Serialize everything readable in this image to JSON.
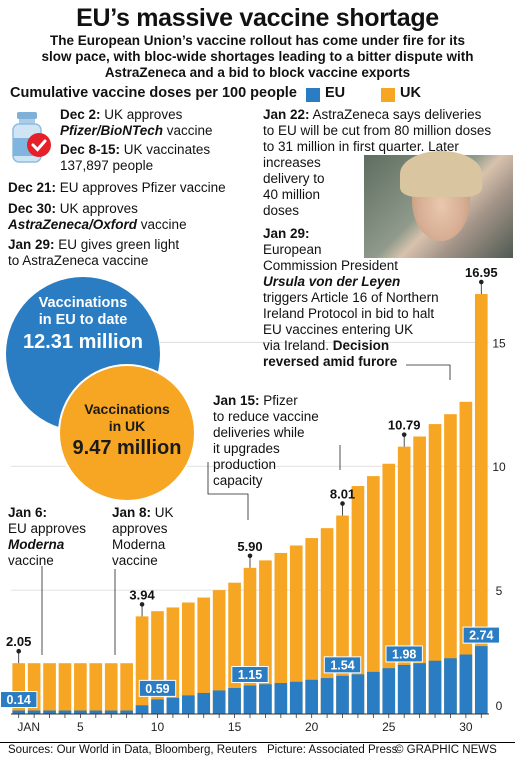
{
  "title": "EU’s massive vaccine shortage",
  "subtitle_lines": [
    "The European Union’s vaccine rollout has come under fire for its",
    "slow pace, with bloc-wide shortages leading to a bitter dispute with",
    "AstraZeneca and a bid to block vaccine exports"
  ],
  "colors": {
    "eu": "#2a7dc3",
    "uk": "#f6a623",
    "eu_label_bg": "#2a7dc3",
    "check": "#e5202a"
  },
  "events": {
    "dec2_date": "Dec 2:",
    "dec2_text": " UK approves",
    "dec2_name": "Pfizer/BioNTech",
    "dec2_tail": " vaccine",
    "dec8_date": "Dec 8-15:",
    "dec8_text": " UK vaccinates",
    "dec8_line2": "137,897 people",
    "dec21_date": "Dec 21:",
    "dec21_text": " EU approves Pfizer vaccine",
    "dec30_date": "Dec 30:",
    "dec30_text": " UK approves",
    "dec30_name": "AstraZeneca/Oxford",
    "dec30_tail": " vaccine",
    "jan29a_date": "Jan 29:",
    "jan29a_text": " EU gives green light",
    "jan29a_line2": "to AstraZeneca vaccine",
    "jan22_date": "Jan 22:",
    "jan22_line1": " AstraZeneca says deliveries",
    "jan22_line2": "to EU will be cut from 80 million doses",
    "jan22_line3": "to 31 million in first quarter. Later",
    "jan22_line4": "increases",
    "jan22_line5": "delivery to",
    "jan22_line6": "40 million",
    "jan22_line7": "doses",
    "jan29b_date": "Jan 29:",
    "jan29b_line1": "European",
    "jan29b_line2": "Commission President",
    "jan29b_name": "Ursula von der Leyen",
    "jan29b_line3": "triggers Article 16 of Northern",
    "jan29b_line4": "Ireland Protocol in bid to halt",
    "jan29b_line5": "EU vaccines entering UK",
    "jan29b_line6": "via Ireland. ",
    "jan29b_bold1": "Decision",
    "jan29b_bold2": "reversed amid furore",
    "jan15_date": "Jan 15:",
    "jan15_text": " Pfizer",
    "jan15_line2": "to reduce vaccine",
    "jan15_line3": "deliveries while",
    "jan15_line4": "it upgrades",
    "jan15_line5": "production",
    "jan15_line6": "capacity",
    "jan6_date": "Jan 6:",
    "jan6_line1": "EU approves",
    "jan6_name": "Moderna",
    "jan6_line2": "vaccine",
    "jan8_date": "Jan 8:",
    "jan8_text": " UK",
    "jan8_line1": "approves",
    "jan8_line2": "Moderna",
    "jan8_line3": "vaccine"
  },
  "bubbles": {
    "eu_line1": "Vaccinations",
    "eu_line2": "in EU to date",
    "eu_value": "12.31 million",
    "uk_line1": "Vaccinations",
    "uk_line2": "in UK",
    "uk_value": "9.47 million"
  },
  "footer": {
    "sources": "Sources: Our World in Data, Bloomberg, Reuters",
    "picture": "Picture: Associated Press",
    "credit": "© GRAPHIC NEWS"
  },
  "chart_data": {
    "type": "bar",
    "title": "Cumulative vaccine doses per 100 people",
    "legend": [
      "EU",
      "UK"
    ],
    "legend_placement": "top-right",
    "x_unit": "JAN",
    "x": [
      1,
      2,
      3,
      4,
      5,
      6,
      7,
      8,
      9,
      10,
      11,
      12,
      13,
      14,
      15,
      16,
      17,
      18,
      19,
      20,
      21,
      22,
      23,
      24,
      25,
      26,
      27,
      28,
      29,
      30,
      31
    ],
    "x_ticks": [
      5,
      10,
      15,
      20,
      25,
      30
    ],
    "x_first_label": "JAN",
    "ylim": [
      0,
      18
    ],
    "y_ticks": [
      5,
      10,
      15
    ],
    "series": [
      {
        "name": "EU",
        "values": [
          0.14,
          0.14,
          0.14,
          0.14,
          0.14,
          0.14,
          0.14,
          0.14,
          0.35,
          0.59,
          0.65,
          0.75,
          0.85,
          0.95,
          1.05,
          1.15,
          1.2,
          1.25,
          1.3,
          1.38,
          1.45,
          1.54,
          1.6,
          1.7,
          1.85,
          1.98,
          2.05,
          2.15,
          2.25,
          2.4,
          2.74
        ]
      },
      {
        "name": "UK",
        "values": [
          2.05,
          2.05,
          2.05,
          2.05,
          2.05,
          2.05,
          2.05,
          2.05,
          3.94,
          4.15,
          4.3,
          4.5,
          4.7,
          5.0,
          5.3,
          5.9,
          6.2,
          6.5,
          6.8,
          7.1,
          7.5,
          8.01,
          9.2,
          9.6,
          10.1,
          10.79,
          11.2,
          11.7,
          12.1,
          12.6,
          16.95
        ]
      }
    ],
    "data_labels": [
      {
        "series": "UK",
        "x": 1,
        "text": "2.05"
      },
      {
        "series": "UK",
        "x": 9,
        "text": "3.94"
      },
      {
        "series": "UK",
        "x": 16,
        "text": "5.90"
      },
      {
        "series": "UK",
        "x": 22,
        "text": "8.01"
      },
      {
        "series": "UK",
        "x": 26,
        "text": "10.79"
      },
      {
        "series": "UK",
        "x": 31,
        "text": "16.95"
      },
      {
        "series": "EU",
        "x": 1,
        "text": "0.14"
      },
      {
        "series": "EU",
        "x": 10,
        "text": "0.59"
      },
      {
        "series": "EU",
        "x": 16,
        "text": "1.15"
      },
      {
        "series": "EU",
        "x": 22,
        "text": "1.54"
      },
      {
        "series": "EU",
        "x": 26,
        "text": "1.98"
      },
      {
        "series": "EU",
        "x": 31,
        "text": "2.74"
      }
    ]
  }
}
